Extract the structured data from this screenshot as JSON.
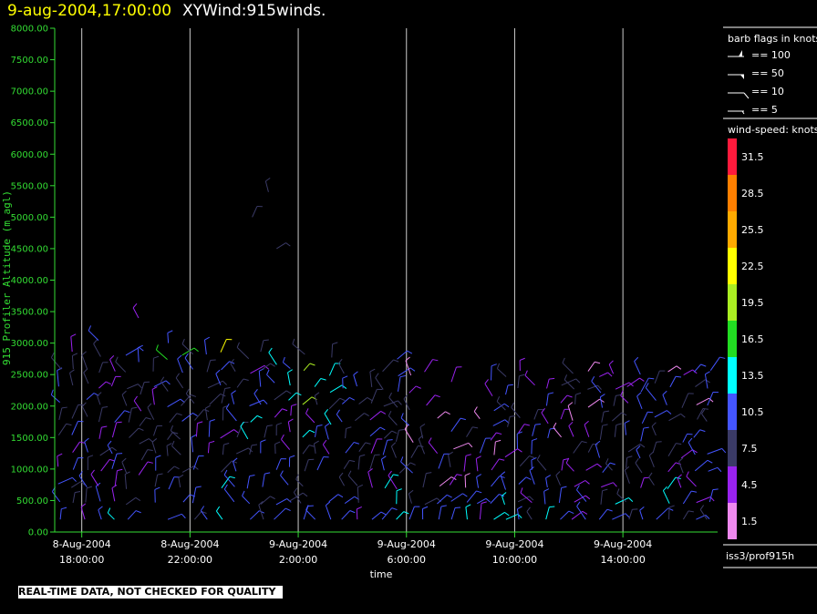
{
  "header": {
    "datetime": "9-aug-2004,17:00:00",
    "title": "XYWind:915winds."
  },
  "notice": "REAL-TIME DATA, NOT CHECKED FOR QUALITY",
  "colors": {
    "background": "#000000",
    "y_axis": "#33dd33",
    "grid": "#cccccc",
    "header_date": "#ffff00"
  },
  "chart_data": {
    "type": "wind-barb",
    "title": "XYWind:915winds.",
    "ylabel": "915 Profiler Altitude (m agl)",
    "xlabel": "time",
    "ylim": [
      0,
      8000
    ],
    "y_ticks": [
      "0.00",
      "500.00",
      "1000.00",
      "1500.00",
      "2000.00",
      "2500.00",
      "3000.00",
      "3500.00",
      "4000.00",
      "4500.00",
      "5000.00",
      "5500.00",
      "6000.00",
      "6500.00",
      "7000.00",
      "7500.00",
      "8000.00"
    ],
    "x_ticks": [
      {
        "date": "8-Aug-2004",
        "time": "18:00:00"
      },
      {
        "date": "8-Aug-2004",
        "time": "22:00:00"
      },
      {
        "date": "9-Aug-2004",
        "time": "2:00:00"
      },
      {
        "date": "9-Aug-2004",
        "time": "6:00:00"
      },
      {
        "date": "9-Aug-2004",
        "time": "10:00:00"
      },
      {
        "date": "9-Aug-2004",
        "time": "14:00:00"
      }
    ],
    "x_range_hours": [
      -1,
      23.5
    ],
    "x_tick_hours": [
      0,
      4,
      8,
      12,
      16,
      20
    ],
    "grid": true,
    "barb_legend": {
      "title": "barb flags in knots",
      "items": [
        "== 100",
        "== 50",
        "== 10",
        "== 5"
      ]
    },
    "speed_legend": {
      "title": "wind-speed: knots",
      "levels": [
        {
          "label": "31.5",
          "color": "#ff1a3c"
        },
        {
          "label": "28.5",
          "color": "#ff7f00"
        },
        {
          "label": "25.5",
          "color": "#ffaa00"
        },
        {
          "label": "22.5",
          "color": "#ffff00"
        },
        {
          "label": "19.5",
          "color": "#aaee22"
        },
        {
          "label": "16.5",
          "color": "#22dd22"
        },
        {
          "label": "13.5",
          "color": "#00ffff"
        },
        {
          "label": "10.5",
          "color": "#4455ff"
        },
        {
          "label": "7.5",
          "color": "#3a3a66"
        },
        {
          "label": "4.5",
          "color": "#9922ee"
        },
        {
          "label": "1.5",
          "color": "#ee88ee"
        }
      ]
    },
    "source": "iss3/prof915h"
  }
}
